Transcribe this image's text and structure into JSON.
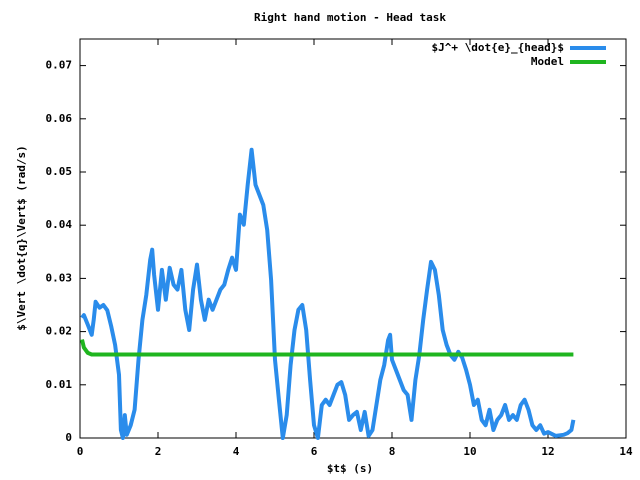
{
  "chart_data": {
    "type": "line",
    "title": "Right hand motion - Head task",
    "xlabel": "$t$ (s)",
    "ylabel": "$\\Vert \\dot{q}\\Vert$ (rad/s)",
    "xlim": [
      0,
      14
    ],
    "xticks": [
      0,
      2,
      4,
      6,
      8,
      10,
      12,
      14
    ],
    "ylim": [
      0,
      0.075
    ],
    "yticks": [
      0,
      0.01,
      0.02,
      0.03,
      0.04,
      0.05,
      0.06,
      0.07
    ],
    "legend": "upper right",
    "series": [
      {
        "name": "$J^+ \\dot{e}_{head}$",
        "color": "#2a8ceb",
        "x": [
          0.05,
          0.1,
          0.2,
          0.3,
          0.35,
          0.4,
          0.5,
          0.6,
          0.7,
          0.8,
          0.9,
          1.0,
          1.05,
          1.1,
          1.15,
          1.2,
          1.3,
          1.4,
          1.5,
          1.6,
          1.7,
          1.8,
          1.85,
          1.9,
          2.0,
          2.1,
          2.2,
          2.3,
          2.4,
          2.5,
          2.6,
          2.7,
          2.8,
          2.9,
          3.0,
          3.1,
          3.2,
          3.3,
          3.4,
          3.5,
          3.6,
          3.7,
          3.8,
          3.9,
          4.0,
          4.1,
          4.2,
          4.3,
          4.4,
          4.5,
          4.6,
          4.7,
          4.8,
          4.9,
          5.0,
          5.1,
          5.2,
          5.3,
          5.4,
          5.5,
          5.6,
          5.7,
          5.8,
          5.9,
          6.0,
          6.1,
          6.2,
          6.3,
          6.4,
          6.5,
          6.6,
          6.7,
          6.8,
          6.9,
          7.0,
          7.1,
          7.2,
          7.3,
          7.4,
          7.5,
          7.6,
          7.7,
          7.8,
          7.9,
          7.95,
          8.0,
          8.1,
          8.2,
          8.3,
          8.4,
          8.5,
          8.6,
          8.7,
          8.8,
          8.9,
          9.0,
          9.1,
          9.2,
          9.3,
          9.4,
          9.5,
          9.6,
          9.7,
          9.8,
          9.9,
          10.0,
          10.1,
          10.2,
          10.3,
          10.4,
          10.5,
          10.6,
          10.7,
          10.8,
          10.9,
          11.0,
          11.1,
          11.2,
          11.3,
          11.4,
          11.5,
          11.6,
          11.7,
          11.8,
          11.9,
          12.0,
          12.2,
          12.4,
          12.5,
          12.6,
          12.65
        ],
        "values": [
          0.0226,
          0.0231,
          0.0213,
          0.0194,
          0.0222,
          0.0256,
          0.0245,
          0.025,
          0.024,
          0.021,
          0.0175,
          0.0119,
          0.0015,
          0,
          0.0043,
          0.0006,
          0.0024,
          0.0053,
          0.0147,
          0.0222,
          0.0269,
          0.0335,
          0.0354,
          0.0307,
          0.0241,
          0.0316,
          0.026,
          0.032,
          0.0288,
          0.0279,
          0.0316,
          0.0241,
          0.0203,
          0.0279,
          0.0326,
          0.026,
          0.0222,
          0.026,
          0.0241,
          0.026,
          0.0279,
          0.0288,
          0.0316,
          0.0339,
          0.0316,
          0.042,
          0.0401,
          0.0476,
          0.0542,
          0.0476,
          0.0457,
          0.0438,
          0.0391,
          0.0297,
          0.0147,
          0.0072,
          0,
          0.0043,
          0.0137,
          0.0203,
          0.0241,
          0.025,
          0.0203,
          0.0109,
          0.0024,
          0,
          0.0062,
          0.0072,
          0.0062,
          0.0081,
          0.01,
          0.0105,
          0.0081,
          0.0034,
          0.0043,
          0.0049,
          0.0015,
          0.0049,
          0.0004,
          0.0015,
          0.0062,
          0.0109,
          0.0137,
          0.0184,
          0.0194,
          0.0147,
          0.0128,
          0.0109,
          0.009,
          0.0081,
          0.0034,
          0.0109,
          0.0156,
          0.0222,
          0.0279,
          0.0331,
          0.0316,
          0.0269,
          0.0203,
          0.0175,
          0.0156,
          0.0147,
          0.0162,
          0.0151,
          0.0128,
          0.01,
          0.0062,
          0.0072,
          0.0034,
          0.0024,
          0.0053,
          0.0015,
          0.0034,
          0.0043,
          0.0062,
          0.0034,
          0.0043,
          0.0034,
          0.0062,
          0.0072,
          0.0053,
          0.0024,
          0.0015,
          0.0024,
          0.0008,
          0.0011,
          0.0004,
          0.0006,
          0.0009,
          0.0015,
          0.0034
        ]
      },
      {
        "name": "Model",
        "color": "#1fb51f",
        "x": [
          0.05,
          0.1,
          0.2,
          0.3,
          0.5,
          12.65
        ],
        "values": [
          0.0185,
          0.017,
          0.016,
          0.0157,
          0.0157,
          0.0157
        ]
      }
    ]
  }
}
